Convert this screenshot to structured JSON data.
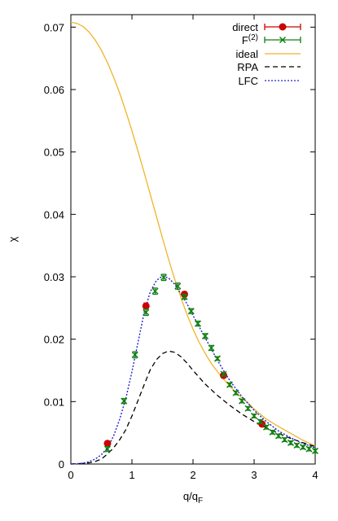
{
  "chart_data": {
    "type": "line",
    "xlabel": "q/q",
    "xlabel_sub": "F",
    "ylabel": "χ",
    "xlim": [
      0,
      4
    ],
    "ylim": [
      0,
      0.072
    ],
    "x_ticks": [
      0,
      1,
      2,
      3,
      4
    ],
    "y_ticks": [
      0,
      0.01,
      0.02,
      0.03,
      0.04,
      0.05,
      0.06,
      0.07
    ],
    "x_tick_labels": [
      "0",
      "1",
      "2",
      "3",
      "4"
    ],
    "y_tick_labels": [
      "0",
      "0.01",
      "0.02",
      "0.03",
      "0.04",
      "0.05",
      "0.06",
      "0.07"
    ],
    "grid": false,
    "legend_position": "top-right",
    "legend": [
      {
        "key": "direct",
        "label": "direct",
        "sup": ""
      },
      {
        "key": "F2",
        "label": "F",
        "sup": "(2)"
      },
      {
        "key": "ideal",
        "label": "ideal",
        "sup": ""
      },
      {
        "key": "RPA",
        "label": "RPA",
        "sup": ""
      },
      {
        "key": "LFC",
        "label": "LFC",
        "sup": ""
      }
    ],
    "series": [
      {
        "key": "ideal",
        "name": "ideal",
        "style": "line",
        "color": "#f0b429",
        "dash": "",
        "x": [
          0,
          0.1,
          0.2,
          0.3,
          0.4,
          0.5,
          0.6,
          0.7,
          0.8,
          0.9,
          1.0,
          1.1,
          1.2,
          1.3,
          1.4,
          1.5,
          1.6,
          1.7,
          1.8,
          1.9,
          2.0,
          2.1,
          2.2,
          2.3,
          2.4,
          2.5,
          2.6,
          2.7,
          2.8,
          2.9,
          3.0,
          3.2,
          3.4,
          3.6,
          3.8,
          4.0
        ],
        "y": [
          0.0708,
          0.0706,
          0.0701,
          0.0692,
          0.0679,
          0.0663,
          0.0643,
          0.062,
          0.0594,
          0.0565,
          0.0534,
          0.0501,
          0.0467,
          0.0432,
          0.0397,
          0.0362,
          0.0328,
          0.0296,
          0.0267,
          0.024,
          0.0216,
          0.0195,
          0.0177,
          0.0161,
          0.0148,
          0.0136,
          0.0125,
          0.0115,
          0.0106,
          0.0098,
          0.0088,
          0.0072,
          0.006,
          0.0049,
          0.0038,
          0.0029
        ]
      },
      {
        "key": "RPA",
        "name": "RPA",
        "style": "line",
        "color": "#000000",
        "dash": "6,4",
        "x": [
          0,
          0.2,
          0.3,
          0.4,
          0.5,
          0.6,
          0.7,
          0.8,
          0.9,
          1.0,
          1.1,
          1.2,
          1.3,
          1.4,
          1.5,
          1.6,
          1.7,
          1.8,
          1.9,
          2.0,
          2.2,
          2.4,
          2.6,
          2.8,
          3.0,
          3.2,
          3.4,
          3.6,
          3.8,
          4.0
        ],
        "y": [
          0,
          0.0001,
          0.0002,
          0.0004,
          0.0008,
          0.0016,
          0.0026,
          0.0039,
          0.0055,
          0.0077,
          0.0102,
          0.0127,
          0.0151,
          0.0167,
          0.0177,
          0.0181,
          0.0179,
          0.0172,
          0.0162,
          0.015,
          0.0128,
          0.011,
          0.0094,
          0.008,
          0.0068,
          0.0058,
          0.0049,
          0.0041,
          0.0034,
          0.0028
        ]
      },
      {
        "key": "LFC",
        "name": "LFC",
        "style": "line",
        "color": "#2020d0",
        "dash": "2,2",
        "x": [
          0,
          0.2,
          0.3,
          0.4,
          0.5,
          0.6,
          0.7,
          0.8,
          0.9,
          1.0,
          1.1,
          1.2,
          1.3,
          1.4,
          1.5,
          1.6,
          1.7,
          1.8,
          1.9,
          2.0,
          2.2,
          2.4,
          2.6,
          2.8,
          3.0,
          3.2,
          3.4,
          3.6,
          3.8,
          4.0
        ],
        "y": [
          0,
          0.0001,
          0.0004,
          0.0008,
          0.0015,
          0.0026,
          0.0045,
          0.0072,
          0.0105,
          0.0148,
          0.0195,
          0.0243,
          0.0276,
          0.0294,
          0.0301,
          0.0298,
          0.0288,
          0.0273,
          0.0257,
          0.0238,
          0.0202,
          0.0166,
          0.0134,
          0.0108,
          0.0086,
          0.0068,
          0.0053,
          0.0042,
          0.0033,
          0.0026
        ]
      },
      {
        "key": "direct",
        "name": "direct",
        "style": "points",
        "marker": "circle",
        "color": "#cc0000",
        "x": [
          0.6,
          1.23,
          1.86,
          2.5,
          3.13
        ],
        "y": [
          0.0033,
          0.0253,
          0.0272,
          0.0142,
          0.0064
        ],
        "err": [
          0.0004,
          0.0005,
          0.0004,
          0.0004,
          0.0003
        ]
      },
      {
        "key": "F2",
        "name": "F(2)",
        "style": "points",
        "marker": "x",
        "color": "#108010",
        "x": [
          0.6,
          0.87,
          1.05,
          1.23,
          1.38,
          1.52,
          1.75,
          1.86,
          1.97,
          2.08,
          2.2,
          2.3,
          2.4,
          2.5,
          2.6,
          2.7,
          2.8,
          2.9,
          3.0,
          3.1,
          3.2,
          3.3,
          3.4,
          3.5,
          3.6,
          3.7,
          3.8,
          3.9,
          4.0
        ],
        "y": [
          0.0024,
          0.0101,
          0.0175,
          0.0243,
          0.0277,
          0.0299,
          0.0285,
          0.0268,
          0.0245,
          0.0225,
          0.0205,
          0.0186,
          0.0169,
          0.0144,
          0.0127,
          0.0114,
          0.0101,
          0.0089,
          0.0077,
          0.0068,
          0.0059,
          0.0051,
          0.0045,
          0.0039,
          0.0034,
          0.003,
          0.0027,
          0.0024,
          0.0021
        ],
        "err": [
          0.0004,
          0.0004,
          0.0005,
          0.0005,
          0.0005,
          0.0005,
          0.0005,
          0.0004,
          0.0004,
          0.0004,
          0.0004,
          0.0004,
          0.0003,
          0.0003,
          0.0003,
          0.0003,
          0.0003,
          0.0003,
          0.0003,
          0.0003,
          0.0003,
          0.0003,
          0.0003,
          0.0003,
          0.0003,
          0.0003,
          0.0003,
          0.0003,
          0.0003
        ]
      }
    ]
  }
}
